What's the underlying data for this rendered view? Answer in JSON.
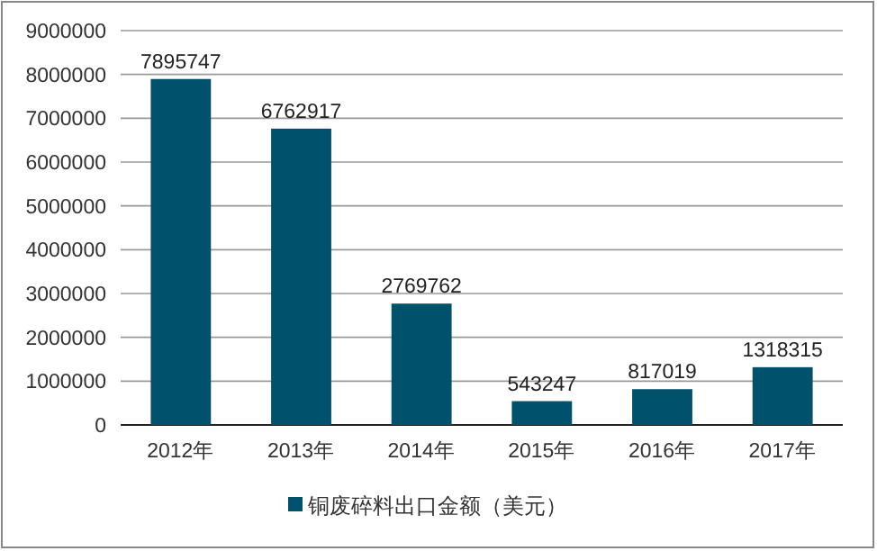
{
  "chart_data": {
    "type": "bar",
    "categories": [
      "2012年",
      "2013年",
      "2014年",
      "2015年",
      "2016年",
      "2017年"
    ],
    "series": [
      {
        "name": "铜废碎料出口金额（美元）",
        "color": "#00516b",
        "values": [
          7895747,
          6762917,
          2769762,
          543247,
          817019,
          1318315
        ]
      }
    ],
    "ylim": [
      0,
      9000000
    ],
    "yticks": [
      0,
      1000000,
      2000000,
      3000000,
      4000000,
      5000000,
      6000000,
      7000000,
      8000000,
      9000000
    ],
    "grid": "y",
    "legend": "bottom",
    "data_labels": true
  }
}
